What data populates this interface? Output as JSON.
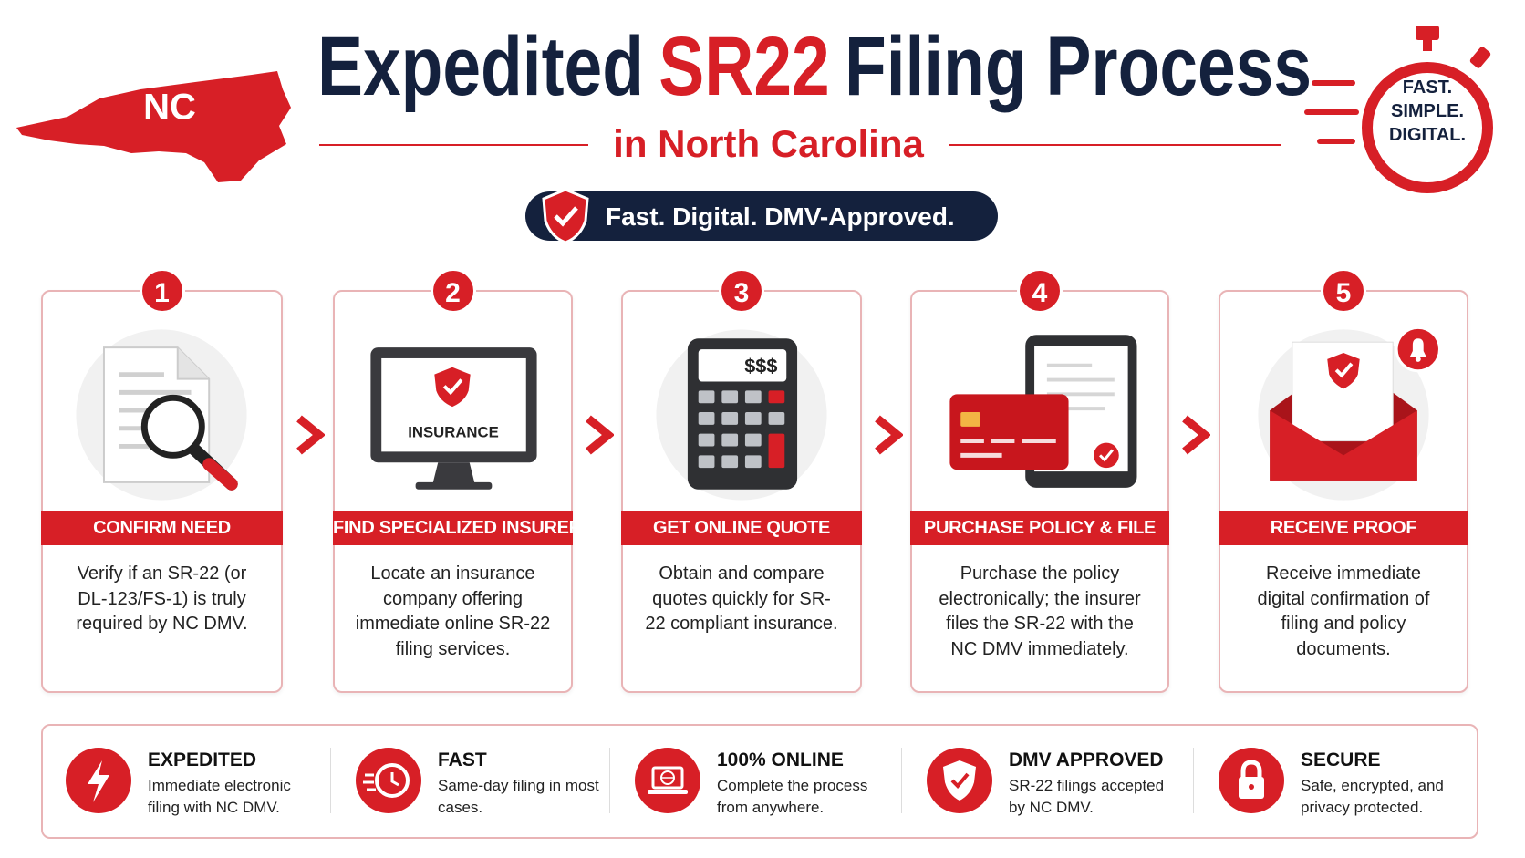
{
  "header": {
    "state_label": "NC",
    "title": {
      "part1": "Expedited",
      "part2": "SR22",
      "part3": "Filing Process"
    },
    "subtitle": "in North Carolina",
    "badge": "Fast. Digital. DMV-Approved.",
    "stopwatch": [
      "FAST.",
      "SIMPLE.",
      "DIGITAL."
    ]
  },
  "steps": [
    {
      "number": 1,
      "title": "CONFIRM NEED",
      "text": "Verify if an SR-22 (or DL-123/FS-1) is truly required by NC DMV."
    },
    {
      "number": 2,
      "title": "FIND SPECIALIZED INSURER",
      "text": "Locate an insurance company offering immediate online SR-22 filing services.",
      "icon_text": "INSURANCE"
    },
    {
      "number": 3,
      "title": "GET ONLINE QUOTE",
      "text": "Obtain and compare quotes quickly for SR-22 compliant insurance.",
      "icon_text": "$$$"
    },
    {
      "number": 4,
      "title": "PURCHASE POLICY & FILE",
      "text": "Purchase the policy electronically; the insurer files the SR-22 with the NC DMV immediately."
    },
    {
      "number": 5,
      "title": "RECEIVE PROOF",
      "text": "Receive immediate digital confirmation of filing and policy documents."
    }
  ],
  "features": [
    {
      "title": "EXPEDITED",
      "text": "Immediate electronic filing with NC DMV."
    },
    {
      "title": "FAST",
      "text": "Same-day filing in most cases."
    },
    {
      "title": "100% ONLINE",
      "text": "Complete the process from anywhere."
    },
    {
      "title": "DMV APPROVED",
      "text": "SR-22 filings accepted by NC DMV."
    },
    {
      "title": "SECURE",
      "text": "Safe, encrypted, and privacy protected."
    }
  ]
}
